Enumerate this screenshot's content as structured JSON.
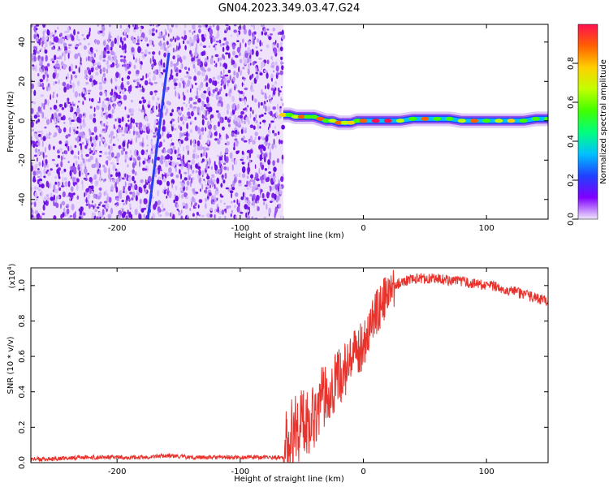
{
  "title": "GN04.2023.349.03.47.G24",
  "chart_data": [
    {
      "type": "heatmap",
      "name": "spectrogram",
      "xlabel": "Height of straight line (km)",
      "ylabel": "Frequency (Hz)",
      "xlim": [
        -270,
        150
      ],
      "ylim": [
        -50,
        49
      ],
      "xticks": [
        -200,
        -100,
        0,
        100
      ],
      "yticks": [
        -40,
        -20,
        0,
        20,
        40
      ],
      "xtick_labels": [
        "-200",
        "-100",
        "0",
        "100"
      ],
      "ytick_labels": [
        "-40",
        "-20",
        "0",
        "20",
        "40"
      ],
      "noise_region_x": [
        -270,
        -65
      ],
      "streak": {
        "x": [
          -175,
          -158
        ],
        "y": [
          -50,
          34
        ]
      },
      "tone": {
        "x": [
          -65,
          -60,
          -55,
          -50,
          -45,
          -40,
          -35,
          -30,
          -25,
          -20,
          -15,
          -10,
          -5,
          0,
          10,
          20,
          30,
          40,
          50,
          60,
          70,
          80,
          90,
          100,
          110,
          120,
          130,
          140,
          150
        ],
        "y": [
          3,
          3,
          2,
          2,
          2,
          2,
          1,
          0,
          0,
          -1,
          -1,
          -1,
          0,
          0,
          0,
          0,
          0,
          1,
          1,
          1,
          1,
          0,
          0,
          0,
          0,
          0,
          0,
          1,
          1
        ],
        "amplitude": [
          0.8,
          0.6,
          0.7,
          0.9,
          0.6,
          0.5,
          0.9,
          0.6,
          0.7,
          0.9,
          0.7,
          0.8,
          0.6,
          0.9,
          0.95,
          1.0,
          0.7,
          0.6,
          0.85,
          0.5,
          0.6,
          0.7,
          0.9,
          0.6,
          0.7,
          0.8,
          0.6,
          0.5,
          0.6
        ]
      },
      "grid": false
    },
    {
      "type": "line",
      "name": "snr",
      "xlabel": "Height of straight line (km)",
      "ylabel": "SNR (10 * v/v)",
      "multiplier_label": "(x10",
      "multiplier_exp": "4",
      "multiplier_close": ")",
      "xlim": [
        -270,
        150
      ],
      "ylim": [
        0,
        1.1
      ],
      "xticks": [
        -200,
        -100,
        0,
        100
      ],
      "yticks": [
        0.0,
        0.2,
        0.4,
        0.6,
        0.8,
        1.0
      ],
      "xtick_labels": [
        "-200",
        "-100",
        "0",
        "100"
      ],
      "ytick_labels": [
        "0.0",
        "0.2",
        "0.4",
        "0.6",
        "0.8",
        "1.0"
      ],
      "series": [
        {
          "color": "#e8322c",
          "x": [
            -270,
            -250,
            -230,
            -200,
            -180,
            -160,
            -140,
            -120,
            -100,
            -80,
            -65,
            -60,
            -55,
            -50,
            -45,
            -40,
            -35,
            -30,
            -25,
            -20,
            -15,
            -10,
            -5,
            0,
            5,
            10,
            15,
            20,
            25,
            30,
            40,
            50,
            60,
            70,
            80,
            90,
            100,
            110,
            120,
            130,
            140,
            150
          ],
          "y": [
            0.02,
            0.02,
            0.03,
            0.03,
            0.03,
            0.04,
            0.03,
            0.03,
            0.03,
            0.03,
            0.03,
            0.12,
            0.2,
            0.22,
            0.24,
            0.28,
            0.34,
            0.4,
            0.44,
            0.48,
            0.52,
            0.56,
            0.62,
            0.68,
            0.76,
            0.84,
            0.9,
            0.95,
            0.99,
            1.02,
            1.04,
            1.04,
            1.04,
            1.03,
            1.02,
            1.01,
            1.0,
            0.99,
            0.97,
            0.95,
            0.93,
            0.91
          ]
        }
      ],
      "grid": false
    },
    {
      "type": "colorbar",
      "name": "colorbar",
      "label": "Normalized spectral amplitude",
      "lim": [
        0,
        1
      ],
      "ticks": [
        0.0,
        0.2,
        0.4,
        0.6,
        0.8
      ],
      "tick_labels": [
        "0.0",
        "0.2",
        "0.4",
        "0.6",
        "0.8"
      ],
      "colors": [
        "#f0e6fb",
        "#8000ff",
        "#2040ff",
        "#00c0ff",
        "#00ff80",
        "#40ff00",
        "#c0ff00",
        "#ffd000",
        "#ff6000",
        "#ff1050"
      ]
    }
  ]
}
